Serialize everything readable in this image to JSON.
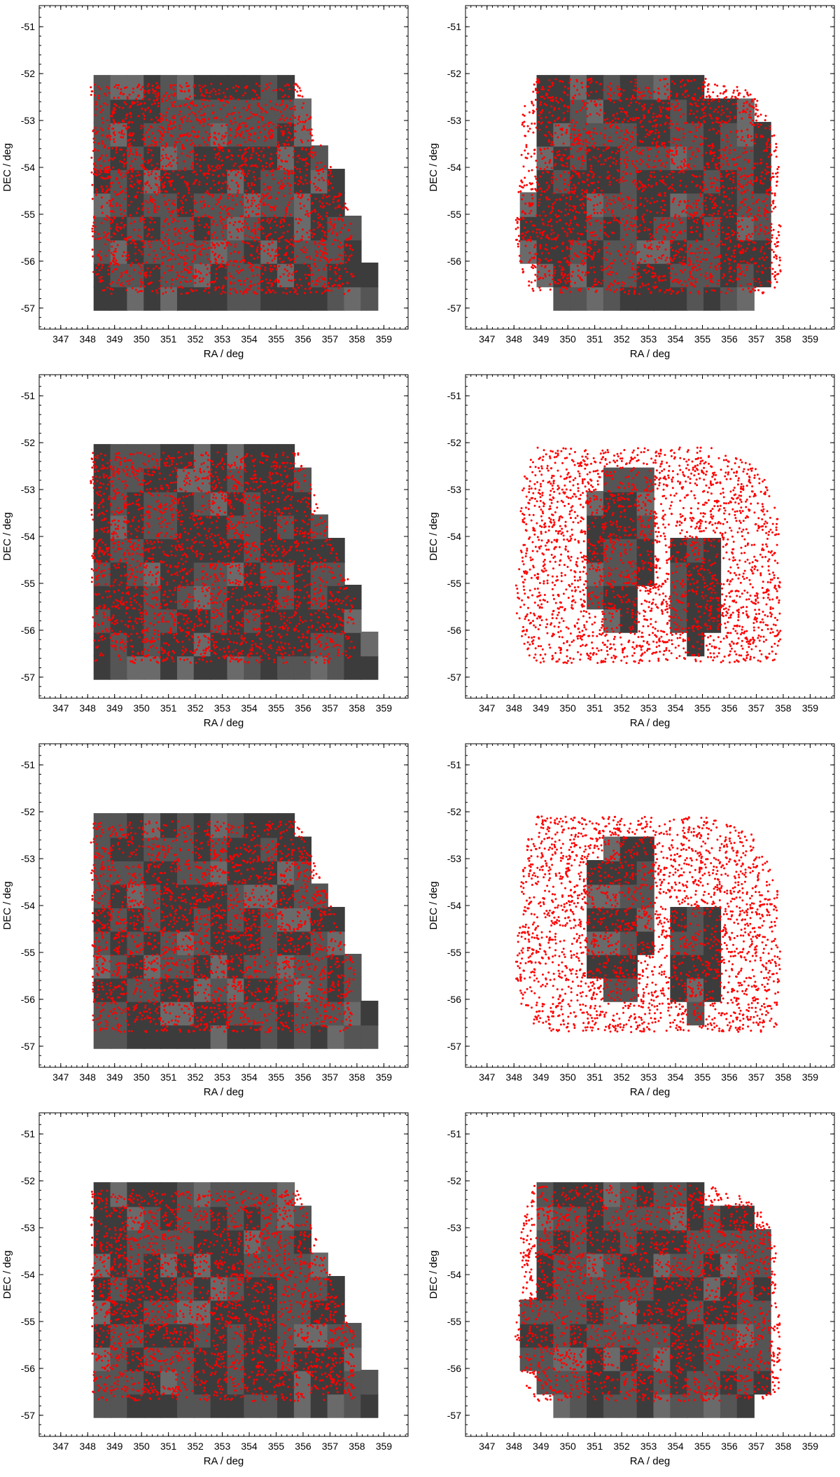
{
  "colors": {
    "points": "#ff0000",
    "mosaic_dark": "#3c3c3c",
    "mosaic_mid": "#555555",
    "mosaic_light": "#6a6a6a",
    "frame": "#000000"
  },
  "chart_data": [
    {
      "type": "scatter",
      "panel": "row1-left",
      "xlabel": "RA / deg",
      "ylabel": "DEC / deg",
      "xlim": [
        346.2,
        359.9
      ],
      "ylim": [
        -57.45,
        -50.55
      ],
      "xticks": [
        "347",
        "348",
        "349",
        "350",
        "351",
        "352",
        "353",
        "354",
        "355",
        "356",
        "357",
        "358",
        "359"
      ],
      "yticks": [
        "-51",
        "-52",
        "-53",
        "-54",
        "-55",
        "-56",
        "-57"
      ],
      "background": "grayscale survey image mosaic, rectangular tiled footprint",
      "series": [
        {
          "color": "#ff0000",
          "footprint": "rectangular tiled area",
          "ra_range": [
            348.1,
            357.9
          ],
          "dec_range": [
            -56.7,
            -52.1
          ],
          "approx_points": 9000
        }
      ]
    },
    {
      "type": "scatter",
      "panel": "row1-right",
      "xlabel": "RA / deg",
      "ylabel": "DEC / deg",
      "xlim": [
        346.2,
        359.9
      ],
      "ylim": [
        -57.45,
        -50.55
      ],
      "xticks": [
        "347",
        "348",
        "349",
        "350",
        "351",
        "352",
        "353",
        "354",
        "355",
        "356",
        "357",
        "358",
        "359"
      ],
      "yticks": [
        "-51",
        "-52",
        "-53",
        "-54",
        "-55",
        "-56",
        "-57"
      ],
      "background": "grayscale survey image mosaic, circular pointings footprint",
      "series": [
        {
          "color": "#ff0000",
          "footprint": "overlapping circular fields",
          "ra_range": [
            348.0,
            357.9
          ],
          "dec_range": [
            -56.7,
            -52.1
          ],
          "approx_points": 9000
        }
      ]
    },
    {
      "type": "scatter",
      "panel": "row2-left",
      "xlabel": "RA / deg",
      "ylabel": "DEC / deg",
      "xlim": [
        346.2,
        359.9
      ],
      "ylim": [
        -57.45,
        -50.55
      ],
      "xticks": [
        "347",
        "348",
        "349",
        "350",
        "351",
        "352",
        "353",
        "354",
        "355",
        "356",
        "357",
        "358",
        "359"
      ],
      "yticks": [
        "-51",
        "-52",
        "-53",
        "-54",
        "-55",
        "-56",
        "-57"
      ],
      "background": "grayscale survey image mosaic, rectangular tiled footprint",
      "series": [
        {
          "color": "#ff0000",
          "footprint": "rectangular tiled area",
          "ra_range": [
            348.1,
            357.9
          ],
          "dec_range": [
            -56.7,
            -52.1
          ],
          "approx_points": 9000
        }
      ]
    },
    {
      "type": "scatter",
      "panel": "row2-right",
      "xlabel": "RA / deg",
      "ylabel": "DEC / deg",
      "xlim": [
        346.2,
        359.9
      ],
      "ylim": [
        -57.45,
        -50.55
      ],
      "xticks": [
        "347",
        "348",
        "349",
        "350",
        "351",
        "352",
        "353",
        "354",
        "355",
        "356",
        "357",
        "358",
        "359"
      ],
      "yticks": [
        "-51",
        "-52",
        "-53",
        "-54",
        "-55",
        "-56",
        "-57"
      ],
      "background": "grayscale survey image mosaic, two-lobe footprint",
      "series": [
        {
          "color": "#ff0000",
          "footprint": "overlapping circular fields",
          "ra_range": [
            348.0,
            357.9
          ],
          "dec_range": [
            -56.7,
            -52.1
          ],
          "approx_points": 9000
        }
      ]
    },
    {
      "type": "scatter",
      "panel": "row3-left",
      "xlabel": "RA / deg",
      "ylabel": "DEC / deg",
      "xlim": [
        346.2,
        359.9
      ],
      "ylim": [
        -57.45,
        -50.55
      ],
      "xticks": [
        "347",
        "348",
        "349",
        "350",
        "351",
        "352",
        "353",
        "354",
        "355",
        "356",
        "357",
        "358",
        "359"
      ],
      "yticks": [
        "-51",
        "-52",
        "-53",
        "-54",
        "-55",
        "-56",
        "-57"
      ],
      "background": "grayscale survey image mosaic, rectangular tiled footprint",
      "series": [
        {
          "color": "#ff0000",
          "footprint": "rectangular tiled area",
          "ra_range": [
            348.1,
            357.9
          ],
          "dec_range": [
            -56.7,
            -52.1
          ],
          "approx_points": 9000
        }
      ]
    },
    {
      "type": "scatter",
      "panel": "row3-right",
      "xlabel": "RA / deg",
      "ylabel": "DEC / deg",
      "xlim": [
        346.2,
        359.9
      ],
      "ylim": [
        -57.45,
        -50.55
      ],
      "xticks": [
        "347",
        "348",
        "349",
        "350",
        "351",
        "352",
        "353",
        "354",
        "355",
        "356",
        "357",
        "358",
        "359"
      ],
      "yticks": [
        "-51",
        "-52",
        "-53",
        "-54",
        "-55",
        "-56",
        "-57"
      ],
      "background": "grayscale survey image mosaic, two-lobe footprint with gaps",
      "series": [
        {
          "color": "#ff0000",
          "footprint": "overlapping circular fields",
          "ra_range": [
            348.0,
            357.9
          ],
          "dec_range": [
            -56.7,
            -52.1
          ],
          "approx_points": 9000
        }
      ]
    },
    {
      "type": "scatter",
      "panel": "row4-left",
      "xlabel": "RA / deg",
      "ylabel": "DEC / deg",
      "xlim": [
        346.2,
        359.9
      ],
      "ylim": [
        -57.45,
        -50.55
      ],
      "xticks": [
        "347",
        "348",
        "349",
        "350",
        "351",
        "352",
        "353",
        "354",
        "355",
        "356",
        "357",
        "358",
        "359"
      ],
      "yticks": [
        "-51",
        "-52",
        "-53",
        "-54",
        "-55",
        "-56",
        "-57"
      ],
      "background": "grayscale survey image mosaic, rectangular tiled footprint",
      "series": [
        {
          "color": "#ff0000",
          "footprint": "rectangular tiled area",
          "ra_range": [
            348.1,
            357.9
          ],
          "dec_range": [
            -56.7,
            -52.1
          ],
          "approx_points": 9000
        }
      ]
    },
    {
      "type": "scatter",
      "panel": "row4-right",
      "xlabel": "RA / deg",
      "ylabel": "DEC / deg",
      "xlim": [
        346.2,
        359.9
      ],
      "ylim": [
        -57.45,
        -50.55
      ],
      "xticks": [
        "347",
        "348",
        "349",
        "350",
        "351",
        "352",
        "353",
        "354",
        "355",
        "356",
        "357",
        "358",
        "359"
      ],
      "yticks": [
        "-51",
        "-52",
        "-53",
        "-54",
        "-55",
        "-56",
        "-57"
      ],
      "background": "grayscale survey image mosaic, circular pointings footprint",
      "series": [
        {
          "color": "#ff0000",
          "footprint": "overlapping circular fields",
          "ra_range": [
            348.0,
            357.9
          ],
          "dec_range": [
            -56.7,
            -52.1
          ],
          "approx_points": 9000
        }
      ]
    }
  ]
}
